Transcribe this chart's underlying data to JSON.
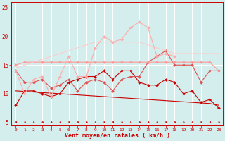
{
  "x": [
    0,
    1,
    2,
    3,
    4,
    5,
    6,
    7,
    8,
    9,
    10,
    11,
    12,
    13,
    14,
    15,
    16,
    17,
    18,
    19,
    20,
    21,
    22,
    23
  ],
  "series": [
    {
      "color": "#cc0000",
      "lw": 0.8,
      "marker": "D",
      "markersize": 2.0,
      "y": [
        8.0,
        10.5,
        10.5,
        10.0,
        9.5,
        10.0,
        12.0,
        12.5,
        13.0,
        13.0,
        14.0,
        12.5,
        14.0,
        14.0,
        12.0,
        11.5,
        11.5,
        12.5,
        12.0,
        10.0,
        10.5,
        8.5,
        9.0,
        7.5
      ]
    },
    {
      "color": "#cc0000",
      "lw": 0.8,
      "marker": null,
      "markersize": 0,
      "y": [
        10.5,
        10.4,
        10.3,
        10.2,
        10.1,
        10.0,
        9.9,
        9.8,
        9.7,
        9.6,
        9.5,
        9.4,
        9.3,
        9.2,
        9.1,
        9.0,
        8.9,
        8.8,
        8.7,
        8.6,
        8.5,
        8.4,
        8.3,
        8.0
      ]
    },
    {
      "color": "#e05050",
      "lw": 0.8,
      "marker": "D",
      "markersize": 2.0,
      "y": [
        14.0,
        12.0,
        12.0,
        12.5,
        11.0,
        11.5,
        12.5,
        10.5,
        12.0,
        12.5,
        12.0,
        10.5,
        12.5,
        13.0,
        13.0,
        15.5,
        16.5,
        17.5,
        15.0,
        15.0,
        15.0,
        12.0,
        14.0,
        14.0
      ]
    },
    {
      "color": "#ff9999",
      "lw": 0.8,
      "marker": "D",
      "markersize": 2.0,
      "y": [
        15.0,
        15.5,
        15.5,
        15.5,
        15.5,
        15.5,
        15.5,
        15.5,
        15.5,
        15.5,
        15.5,
        15.5,
        15.5,
        15.5,
        15.5,
        15.5,
        15.5,
        15.5,
        15.5,
        15.5,
        15.5,
        15.5,
        15.5,
        14.0
      ]
    },
    {
      "color": "#ffaaaa",
      "lw": 0.8,
      "marker": "D",
      "markersize": 2.0,
      "y": [
        14.0,
        10.0,
        12.5,
        13.0,
        9.5,
        13.0,
        16.5,
        13.0,
        13.0,
        18.0,
        20.0,
        19.0,
        19.5,
        21.5,
        22.5,
        21.5,
        16.5,
        17.0,
        16.5,
        null,
        null,
        null,
        null,
        null
      ]
    },
    {
      "color": "#ffcccc",
      "lw": 0.8,
      "marker": null,
      "markersize": 0,
      "y": [
        14.5,
        15.0,
        15.5,
        16.0,
        16.5,
        17.0,
        17.5,
        18.0,
        18.5,
        19.0,
        19.0,
        19.0,
        19.0,
        19.0,
        19.0,
        18.5,
        18.0,
        17.5,
        17.0,
        17.0,
        17.0,
        17.0,
        17.0,
        17.0
      ]
    }
  ],
  "xlim": [
    -0.5,
    23.5
  ],
  "ylim": [
    4.5,
    26
  ],
  "yticks": [
    5,
    10,
    15,
    20,
    25
  ],
  "xticks": [
    0,
    1,
    2,
    3,
    4,
    5,
    6,
    7,
    8,
    9,
    10,
    11,
    12,
    13,
    14,
    15,
    16,
    17,
    18,
    19,
    20,
    21,
    22,
    23
  ],
  "xlabel": "Vent moyen/en rafales ( km/h )",
  "background_color": "#d4eeee",
  "grid_color": "#ffffff",
  "tick_color": "#cc0000",
  "label_color": "#cc0000"
}
